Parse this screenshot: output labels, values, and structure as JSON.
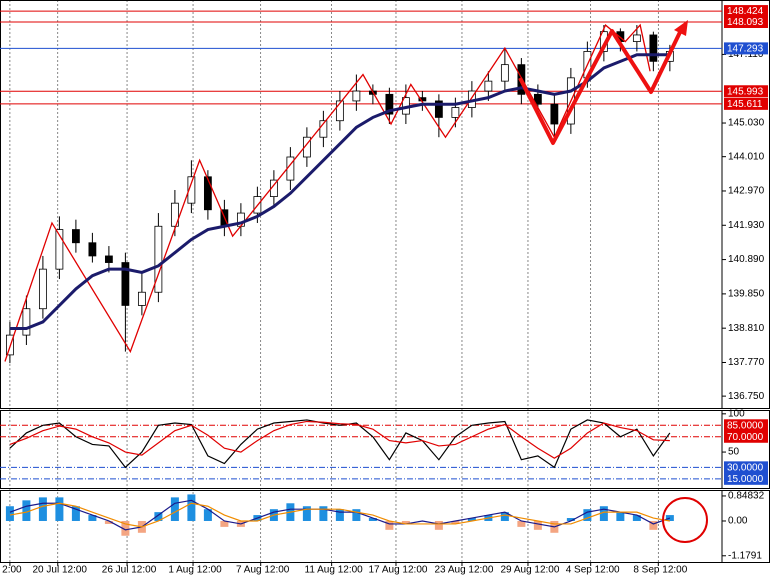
{
  "chart_data": [
    {
      "type": "candlestick",
      "x": [
        0,
        1,
        2,
        3,
        4,
        5,
        6,
        7,
        8,
        9,
        10,
        11,
        12,
        13,
        14,
        15,
        16,
        17,
        18,
        19,
        20,
        21,
        22,
        23,
        24,
        25,
        26,
        27,
        28,
        29,
        30,
        31,
        32,
        33,
        34,
        35,
        36,
        37,
        38,
        39,
        40
      ],
      "open": [
        138.0,
        138.6,
        139.4,
        140.6,
        141.8,
        141.4,
        141.0,
        140.8,
        139.5,
        139.9,
        141.9,
        142.6,
        143.4,
        142.4,
        141.9,
        142.3,
        142.8,
        143.3,
        144.0,
        144.6,
        145.1,
        145.7,
        146.0,
        145.9,
        145.3,
        145.8,
        145.7,
        145.2,
        145.5,
        146.0,
        146.3,
        146.8,
        145.9,
        145.6,
        145.0,
        146.4,
        147.2,
        147.8,
        147.5,
        147.7,
        146.9
      ],
      "high": [
        139.0,
        139.8,
        141.0,
        142.2,
        142.1,
        141.7,
        141.3,
        141.1,
        140.5,
        142.3,
        143.0,
        143.9,
        143.6,
        142.7,
        142.6,
        143.1,
        143.6,
        144.3,
        144.9,
        145.4,
        146.0,
        146.5,
        146.2,
        146.1,
        146.2,
        146.0,
        145.9,
        145.8,
        146.3,
        146.6,
        147.3,
        147.0,
        146.2,
        145.9,
        146.7,
        147.5,
        148.0,
        147.9,
        148.0,
        147.8,
        147.4
      ],
      "low": [
        137.75,
        138.3,
        139.1,
        140.3,
        141.1,
        140.8,
        140.5,
        138.1,
        139.2,
        139.6,
        141.6,
        142.3,
        142.1,
        141.6,
        141.6,
        142.0,
        142.5,
        143.0,
        143.7,
        144.3,
        144.8,
        145.4,
        145.6,
        145.0,
        145.0,
        145.4,
        144.6,
        144.9,
        145.2,
        145.7,
        146.0,
        145.6,
        145.3,
        144.6,
        144.7,
        146.1,
        146.9,
        147.2,
        147.2,
        146.6,
        146.6
      ],
      "close": [
        138.6,
        139.4,
        140.6,
        141.8,
        141.4,
        141.0,
        140.8,
        139.5,
        139.9,
        141.9,
        142.6,
        143.4,
        142.4,
        141.9,
        142.3,
        142.8,
        143.3,
        144.0,
        144.6,
        145.1,
        145.7,
        146.0,
        145.9,
        145.3,
        145.8,
        145.7,
        145.2,
        145.5,
        146.0,
        146.3,
        146.8,
        145.9,
        145.6,
        145.0,
        146.4,
        147.2,
        147.8,
        147.5,
        147.7,
        146.9,
        147.2
      ],
      "up_color": "#ffffff",
      "down_color": "#000000",
      "wick_color": "#000000",
      "series": [
        {
          "color": "#1b1b6b",
          "values": [
            138.8,
            138.8,
            139.0,
            139.5,
            140.0,
            140.4,
            140.6,
            140.6,
            140.5,
            140.7,
            141.1,
            141.5,
            141.8,
            141.9,
            142.0,
            142.2,
            142.5,
            142.9,
            143.4,
            143.9,
            144.4,
            144.9,
            145.2,
            145.4,
            145.5,
            145.6,
            145.6,
            145.6,
            145.7,
            145.8,
            146.0,
            146.1,
            146.0,
            145.9,
            146.0,
            146.3,
            146.7,
            146.9,
            147.1,
            147.1,
            147.1
          ]
        }
      ],
      "zigzag": {
        "color": "#e00000",
        "x": [
          -0.3,
          2.55,
          7.3,
          11.5,
          13.5,
          21.4,
          23.1,
          24.3,
          26.4,
          30.0,
          33.0,
          36.1,
          37.3,
          38.2,
          38.8
        ],
        "values": [
          137.8,
          142.0,
          138.1,
          143.9,
          141.6,
          146.5,
          145.0,
          146.2,
          144.6,
          147.3,
          144.6,
          148.0,
          147.5,
          148.0,
          146.6
        ]
      },
      "xlim": [
        -0.6,
        43.16
      ],
      "ylim": [
        136.39,
        148.76
      ],
      "yticks": [
        {
          "value": 147.11,
          "label": "147.110"
        },
        {
          "value": 145.03,
          "label": "145.030"
        },
        {
          "value": 144.01,
          "label": "144.010"
        },
        {
          "value": 142.97,
          "label": "142.970"
        },
        {
          "value": 141.93,
          "label": "141.930"
        },
        {
          "value": 140.89,
          "label": "140.890"
        },
        {
          "value": 139.85,
          "label": "139.850"
        },
        {
          "value": 138.81,
          "label": "138.810"
        },
        {
          "value": 137.77,
          "label": "137.770"
        },
        {
          "value": 136.75,
          "label": "136.750"
        }
      ],
      "levels": [
        {
          "value": 148.424,
          "color": "#e00000"
        },
        {
          "value": 148.093,
          "color": "#e00000"
        },
        {
          "value": 147.293,
          "color": "#1f4fd0"
        },
        {
          "value": 145.993,
          "color": "#e00000"
        },
        {
          "value": 145.611,
          "color": "#e00000"
        }
      ],
      "xticks": [
        {
          "value": 0.0,
          "label": "2:00"
        },
        {
          "value": 2.9,
          "label": "20 Jul 12:00"
        },
        {
          "value": 7.1,
          "label": "26 Jul 12:00"
        },
        {
          "value": 11.1,
          "label": "1 Aug 12:00"
        },
        {
          "value": 15.2,
          "label": "7 Aug 12:00"
        },
        {
          "value": 19.5,
          "label": "11 Aug 12:00"
        },
        {
          "value": 23.4,
          "label": "17 Aug 12:00"
        },
        {
          "value": 27.4,
          "label": "23 Aug 12:00"
        },
        {
          "value": 31.4,
          "label": "29 Aug 12:00"
        },
        {
          "value": 35.2,
          "label": "4 Sep 12:00"
        },
        {
          "value": 39.3,
          "label": "8 Sep 12:00"
        }
      ],
      "grid": true
    },
    {
      "type": "line",
      "series": [
        {
          "color": "#000000",
          "values": [
            55,
            75,
            85,
            88,
            70,
            60,
            58,
            30,
            50,
            85,
            88,
            86,
            45,
            35,
            60,
            80,
            88,
            90,
            92,
            88,
            85,
            88,
            70,
            40,
            75,
            65,
            40,
            70,
            85,
            88,
            90,
            40,
            45,
            30,
            80,
            92,
            88,
            70,
            80,
            45,
            75
          ]
        },
        {
          "color": "#e00000",
          "values": [
            60,
            68,
            78,
            84,
            80,
            70,
            62,
            50,
            46,
            62,
            78,
            85,
            72,
            55,
            50,
            65,
            78,
            86,
            90,
            89,
            87,
            86,
            80,
            65,
            62,
            65,
            58,
            60,
            70,
            80,
            86,
            70,
            55,
            42,
            55,
            75,
            88,
            82,
            78,
            66,
            65
          ]
        }
      ],
      "ylim": [
        3,
        105
      ],
      "yticks": [
        100,
        50
      ],
      "levels": [
        {
          "value": 85,
          "label": "85.0000",
          "color": "#e00000"
        },
        {
          "value": 70,
          "label": "70.0000",
          "color": "#e00000"
        },
        {
          "value": 30,
          "label": "30.0000",
          "color": "#1f4fd0"
        },
        {
          "value": 15,
          "label": "15.0000",
          "color": "#1f4fd0"
        }
      ]
    },
    {
      "type": "bar",
      "values": [
        0.5,
        0.7,
        0.8,
        0.8,
        0.5,
        0.2,
        -0.1,
        -0.5,
        -0.4,
        0.3,
        0.8,
        0.9,
        0.4,
        -0.2,
        -0.2,
        0.2,
        0.4,
        0.6,
        0.5,
        0.5,
        0.4,
        0.4,
        0.1,
        -0.3,
        -0.1,
        0.0,
        -0.3,
        -0.1,
        0.1,
        0.2,
        0.3,
        -0.2,
        -0.3,
        -0.4,
        0.1,
        0.4,
        0.5,
        0.3,
        0.2,
        -0.3,
        0.2
      ],
      "pos_color": "#1e8fe0",
      "neg_color": "#f4a582",
      "series": [
        {
          "color": "#1b1b8b",
          "values": [
            0.3,
            0.5,
            0.6,
            0.6,
            0.4,
            0.2,
            0.0,
            -0.3,
            -0.2,
            0.2,
            0.6,
            0.7,
            0.4,
            0.0,
            -0.1,
            0.1,
            0.3,
            0.4,
            0.4,
            0.4,
            0.3,
            0.3,
            0.1,
            -0.1,
            -0.1,
            0.0,
            -0.1,
            0.0,
            0.1,
            0.2,
            0.3,
            0.0,
            -0.1,
            -0.2,
            0.0,
            0.3,
            0.4,
            0.3,
            0.2,
            -0.1,
            0.1
          ]
        },
        {
          "color": "#f08c00",
          "values": [
            0.2,
            0.3,
            0.5,
            0.6,
            0.5,
            0.3,
            0.1,
            -0.1,
            -0.2,
            0.0,
            0.3,
            0.6,
            0.5,
            0.2,
            0.0,
            0.0,
            0.2,
            0.3,
            0.4,
            0.4,
            0.4,
            0.3,
            0.2,
            0.0,
            -0.1,
            -0.1,
            -0.1,
            -0.1,
            0.0,
            0.1,
            0.2,
            0.1,
            0.0,
            -0.1,
            -0.1,
            0.1,
            0.3,
            0.3,
            0.3,
            0.1,
            0.0
          ]
        }
      ],
      "ylim": [
        -1.39,
        1.05
      ],
      "yticks": [
        0.84832,
        {
          "value": 0,
          "label": "0.00"
        },
        -1.1791
      ]
    }
  ]
}
